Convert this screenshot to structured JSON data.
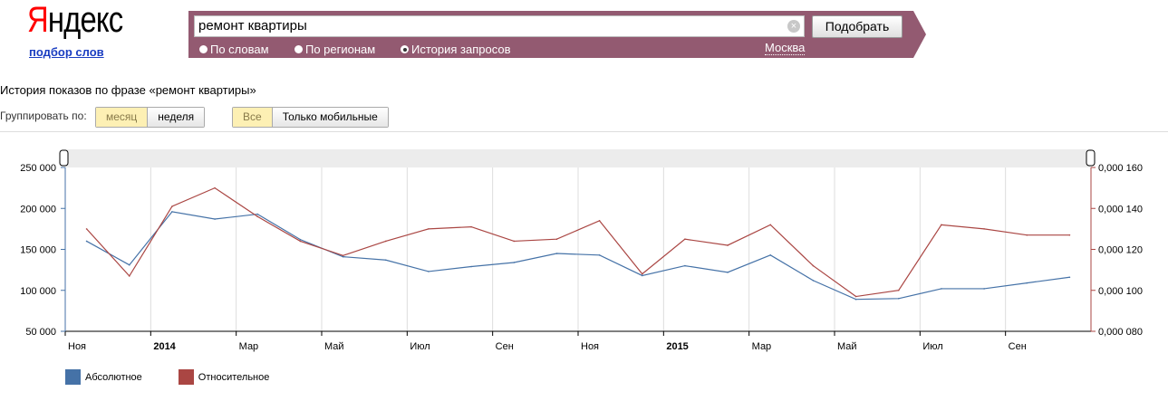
{
  "header": {
    "logo_first": "Я",
    "logo_rest": "ндекс",
    "sub_link": "подбор слов",
    "search_value": "ремонт квартиры",
    "submit_label": "Подобрать",
    "radios": [
      {
        "label": "По словам",
        "checked": false
      },
      {
        "label": "По регионам",
        "checked": false
      },
      {
        "label": "История запросов",
        "checked": true
      }
    ],
    "region": "Москва"
  },
  "page": {
    "title": "История показов по фразе «ремонт квартиры»",
    "group_label": "Группировать по:",
    "group_options": [
      {
        "label": "месяц",
        "active": true
      },
      {
        "label": "неделя",
        "active": false
      }
    ],
    "device_options": [
      {
        "label": "Все",
        "active": true
      },
      {
        "label": "Только мобильные",
        "active": false
      }
    ]
  },
  "chart_data": {
    "type": "line",
    "x": [
      "2013-11",
      "2013-12",
      "2014-01",
      "2014-02",
      "2014-03",
      "2014-04",
      "2014-05",
      "2014-06",
      "2014-07",
      "2014-08",
      "2014-09",
      "2014-10",
      "2014-11",
      "2014-12",
      "2015-01",
      "2015-02",
      "2015-03",
      "2015-04",
      "2015-05",
      "2015-06",
      "2015-07",
      "2015-08",
      "2015-09",
      "2015-10"
    ],
    "x_tick_labels": [
      {
        "label": "Ноя",
        "bold": false
      },
      {
        "label": "2014",
        "bold": true
      },
      {
        "label": "Мар",
        "bold": false
      },
      {
        "label": "Май",
        "bold": false
      },
      {
        "label": "Июл",
        "bold": false
      },
      {
        "label": "Сен",
        "bold": false
      },
      {
        "label": "Ноя",
        "bold": false
      },
      {
        "label": "2015",
        "bold": true
      },
      {
        "label": "Мар",
        "bold": false
      },
      {
        "label": "Май",
        "bold": false
      },
      {
        "label": "Июл",
        "bold": false
      },
      {
        "label": "Сен",
        "bold": false
      }
    ],
    "y_left": {
      "ticks": [
        "250 000",
        "200 000",
        "150 000",
        "100 000",
        "50 000"
      ],
      "range": [
        50000,
        250000
      ]
    },
    "y_right": {
      "ticks": [
        "0,000 160",
        "0,000 140",
        "0,000 120",
        "0,000 100",
        "0,000 080"
      ],
      "range": [
        8e-05,
        0.00016
      ]
    },
    "series": [
      {
        "name": "Абсолютное",
        "color": "#4572a7",
        "axis": "left",
        "values": [
          160000,
          131000,
          196000,
          187000,
          193000,
          162000,
          141000,
          137000,
          123000,
          129000,
          134000,
          145000,
          143000,
          118000,
          130000,
          122000,
          143000,
          112000,
          89000,
          90000,
          102000,
          102000,
          109000,
          116000
        ]
      },
      {
        "name": "Относительное",
        "color": "#aa4643",
        "axis": "right",
        "values": [
          0.00013,
          0.000107,
          0.000141,
          0.00015,
          0.000136,
          0.000124,
          0.000117,
          0.000124,
          0.00013,
          0.000131,
          0.000124,
          0.000125,
          0.000134,
          0.000108,
          0.000125,
          0.000122,
          0.000132,
          0.000112,
          9.7e-05,
          0.0001,
          0.000132,
          0.00013,
          0.000127,
          0.000127
        ]
      }
    ]
  }
}
